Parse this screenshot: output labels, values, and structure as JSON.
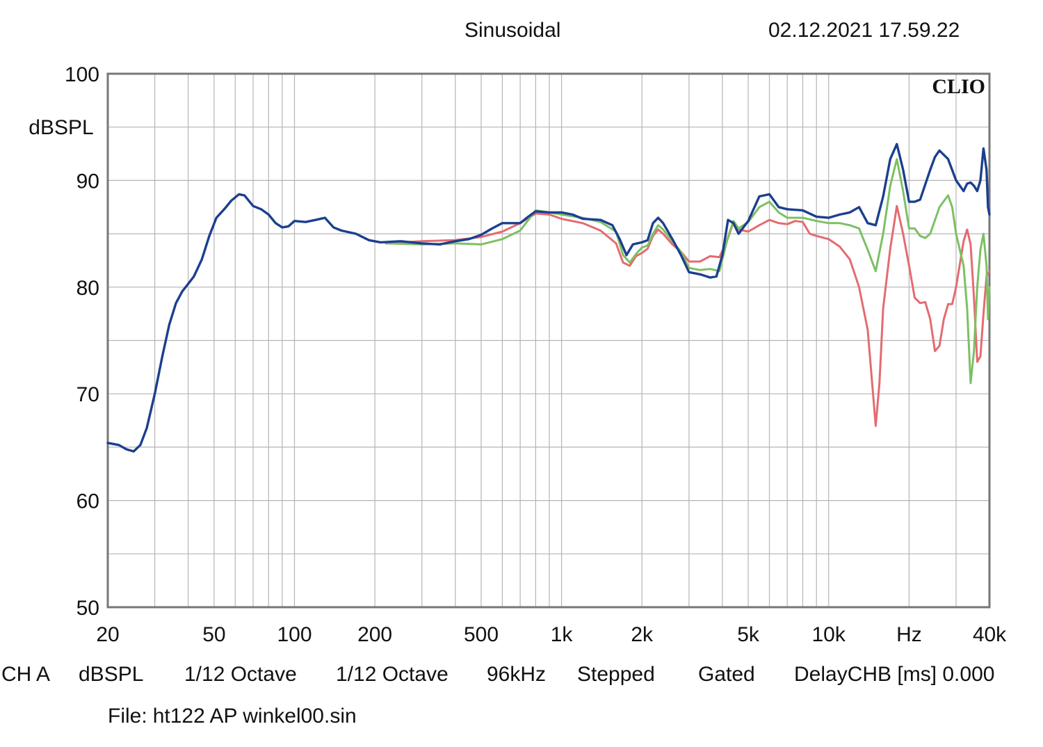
{
  "header": {
    "title": "Sinusoidal",
    "timestamp": "02.12.2021 17.59.22"
  },
  "footer": {
    "settings": [
      "CH A",
      "dBSPL",
      "1/12 Octave",
      "1/12 Octave",
      "96kHz",
      "Stepped",
      "Gated",
      "DelayCHB [ms] 0.000"
    ],
    "file_label": "File:",
    "file_name": "ht122 AP winkel00.sin"
  },
  "chart_data": {
    "type": "line",
    "logo": "CLIO",
    "ylabel": "dBSPL",
    "xscale": "log",
    "xlim": [
      20,
      40000
    ],
    "ylim": [
      50,
      100
    ],
    "y_ticks": [
      50,
      60,
      70,
      80,
      90,
      100
    ],
    "x_tick_labels": [
      {
        "value": 20,
        "label": "20"
      },
      {
        "value": 50,
        "label": "50"
      },
      {
        "value": 100,
        "label": "100"
      },
      {
        "value": 200,
        "label": "200"
      },
      {
        "value": 500,
        "label": "500"
      },
      {
        "value": 1000,
        "label": "1k"
      },
      {
        "value": 2000,
        "label": "2k"
      },
      {
        "value": 5000,
        "label": "5k"
      },
      {
        "value": 10000,
        "label": "10k"
      },
      {
        "value": 20000,
        "label": "Hz"
      },
      {
        "value": 40000,
        "label": "40k"
      }
    ],
    "grid": true,
    "colors": {
      "red": "#e46b70",
      "green": "#7cc062",
      "blue": "#1b3f8f"
    },
    "series": [
      {
        "color": "red",
        "points": [
          [
            220,
            84.1
          ],
          [
            300,
            84.3
          ],
          [
            400,
            84.4
          ],
          [
            500,
            84.7
          ],
          [
            600,
            85.2
          ],
          [
            700,
            86.0
          ],
          [
            800,
            86.9
          ],
          [
            900,
            86.8
          ],
          [
            1000,
            86.4
          ],
          [
            1200,
            86.0
          ],
          [
            1400,
            85.3
          ],
          [
            1600,
            84.1
          ],
          [
            1700,
            82.3
          ],
          [
            1800,
            82.0
          ],
          [
            1900,
            82.9
          ],
          [
            2000,
            83.2
          ],
          [
            2100,
            83.6
          ],
          [
            2200,
            84.8
          ],
          [
            2300,
            85.4
          ],
          [
            2400,
            85.0
          ],
          [
            2600,
            84.0
          ],
          [
            2800,
            83.3
          ],
          [
            3000,
            82.4
          ],
          [
            3300,
            82.4
          ],
          [
            3600,
            82.9
          ],
          [
            3900,
            82.8
          ],
          [
            4200,
            84.6
          ],
          [
            4400,
            86.1
          ],
          [
            4600,
            85.4
          ],
          [
            5000,
            85.2
          ],
          [
            5500,
            85.8
          ],
          [
            6000,
            86.3
          ],
          [
            6500,
            86.0
          ],
          [
            7000,
            85.9
          ],
          [
            7500,
            86.2
          ],
          [
            8000,
            86.1
          ],
          [
            8500,
            85.0
          ],
          [
            9000,
            84.8
          ],
          [
            10000,
            84.5
          ],
          [
            11000,
            83.8
          ],
          [
            12000,
            82.6
          ],
          [
            13000,
            80.0
          ],
          [
            14000,
            76.0
          ],
          [
            15000,
            67.0
          ],
          [
            15500,
            71.0
          ],
          [
            16000,
            78.0
          ],
          [
            17000,
            83.6
          ],
          [
            18000,
            87.6
          ],
          [
            19000,
            85.0
          ],
          [
            20000,
            82.0
          ],
          [
            21000,
            79.0
          ],
          [
            22000,
            78.5
          ],
          [
            23000,
            78.6
          ],
          [
            24000,
            77.0
          ],
          [
            25000,
            74.0
          ],
          [
            26000,
            74.5
          ],
          [
            27000,
            77.0
          ],
          [
            28000,
            78.4
          ],
          [
            29000,
            78.4
          ],
          [
            30000,
            80.0
          ],
          [
            32000,
            84.3
          ],
          [
            33000,
            85.4
          ],
          [
            34000,
            84.0
          ],
          [
            35000,
            79.0
          ],
          [
            36000,
            73.0
          ],
          [
            37000,
            73.5
          ],
          [
            38000,
            77.5
          ],
          [
            39000,
            81.0
          ],
          [
            40000,
            81.5
          ]
        ]
      },
      {
        "color": "green",
        "points": [
          [
            220,
            84.1
          ],
          [
            300,
            84.0
          ],
          [
            400,
            84.1
          ],
          [
            500,
            84.0
          ],
          [
            600,
            84.5
          ],
          [
            700,
            85.3
          ],
          [
            800,
            87.2
          ],
          [
            900,
            87.0
          ],
          [
            1000,
            86.8
          ],
          [
            1200,
            86.5
          ],
          [
            1400,
            86.1
          ],
          [
            1600,
            85.2
          ],
          [
            1700,
            83.0
          ],
          [
            1800,
            82.3
          ],
          [
            1900,
            83.1
          ],
          [
            2000,
            83.7
          ],
          [
            2100,
            83.9
          ],
          [
            2200,
            85.0
          ],
          [
            2300,
            85.8
          ],
          [
            2400,
            85.4
          ],
          [
            2600,
            84.3
          ],
          [
            2800,
            83.3
          ],
          [
            3000,
            81.8
          ],
          [
            3300,
            81.6
          ],
          [
            3600,
            81.7
          ],
          [
            3900,
            81.5
          ],
          [
            4200,
            84.7
          ],
          [
            4400,
            86.2
          ],
          [
            4600,
            85.5
          ],
          [
            5000,
            86.1
          ],
          [
            5500,
            87.5
          ],
          [
            6000,
            88.0
          ],
          [
            6500,
            87.0
          ],
          [
            7000,
            86.5
          ],
          [
            8000,
            86.5
          ],
          [
            9000,
            86.2
          ],
          [
            10000,
            86.0
          ],
          [
            11000,
            86.0
          ],
          [
            12000,
            85.8
          ],
          [
            13000,
            85.5
          ],
          [
            14000,
            83.5
          ],
          [
            15000,
            81.5
          ],
          [
            16000,
            85.0
          ],
          [
            17000,
            89.5
          ],
          [
            18000,
            92.0
          ],
          [
            19000,
            89.0
          ],
          [
            20000,
            85.5
          ],
          [
            21000,
            85.5
          ],
          [
            22000,
            84.8
          ],
          [
            23000,
            84.6
          ],
          [
            24000,
            85.0
          ],
          [
            26000,
            87.5
          ],
          [
            28000,
            88.6
          ],
          [
            29000,
            87.5
          ],
          [
            30000,
            85.0
          ],
          [
            32000,
            82.0
          ],
          [
            33000,
            78.0
          ],
          [
            34000,
            71.0
          ],
          [
            35000,
            74.0
          ],
          [
            36000,
            80.0
          ],
          [
            37000,
            83.5
          ],
          [
            38000,
            85.0
          ],
          [
            39000,
            82.0
          ],
          [
            39500,
            77.0
          ],
          [
            40000,
            80.0
          ]
        ]
      },
      {
        "color": "blue",
        "points": [
          [
            20,
            65.4
          ],
          [
            22,
            65.2
          ],
          [
            23.5,
            64.8
          ],
          [
            25,
            64.6
          ],
          [
            26.5,
            65.2
          ],
          [
            28,
            66.8
          ],
          [
            30,
            70.0
          ],
          [
            32,
            73.5
          ],
          [
            34,
            76.5
          ],
          [
            36,
            78.5
          ],
          [
            38,
            79.6
          ],
          [
            40,
            80.3
          ],
          [
            42,
            81.0
          ],
          [
            45,
            82.6
          ],
          [
            48,
            84.8
          ],
          [
            51,
            86.5
          ],
          [
            55,
            87.4
          ],
          [
            58,
            88.1
          ],
          [
            62,
            88.7
          ],
          [
            65,
            88.6
          ],
          [
            70,
            87.6
          ],
          [
            75,
            87.3
          ],
          [
            80,
            86.8
          ],
          [
            85,
            86.0
          ],
          [
            90,
            85.6
          ],
          [
            95,
            85.7
          ],
          [
            100,
            86.2
          ],
          [
            110,
            86.1
          ],
          [
            120,
            86.3
          ],
          [
            130,
            86.5
          ],
          [
            140,
            85.6
          ],
          [
            150,
            85.3
          ],
          [
            170,
            85.0
          ],
          [
            190,
            84.4
          ],
          [
            210,
            84.2
          ],
          [
            250,
            84.3
          ],
          [
            300,
            84.1
          ],
          [
            350,
            84.0
          ],
          [
            400,
            84.3
          ],
          [
            450,
            84.5
          ],
          [
            500,
            84.9
          ],
          [
            550,
            85.5
          ],
          [
            600,
            86.0
          ],
          [
            700,
            86.0
          ],
          [
            750,
            86.6
          ],
          [
            800,
            87.1
          ],
          [
            900,
            87.0
          ],
          [
            1000,
            87.0
          ],
          [
            1100,
            86.8
          ],
          [
            1200,
            86.4
          ],
          [
            1400,
            86.3
          ],
          [
            1550,
            85.8
          ],
          [
            1650,
            84.5
          ],
          [
            1750,
            83.0
          ],
          [
            1850,
            84.0
          ],
          [
            2000,
            84.2
          ],
          [
            2100,
            84.4
          ],
          [
            2200,
            86.0
          ],
          [
            2300,
            86.5
          ],
          [
            2400,
            86.0
          ],
          [
            2600,
            84.5
          ],
          [
            2800,
            83.0
          ],
          [
            3000,
            81.4
          ],
          [
            3300,
            81.2
          ],
          [
            3600,
            80.9
          ],
          [
            3800,
            81.0
          ],
          [
            4000,
            83.0
          ],
          [
            4200,
            86.3
          ],
          [
            4400,
            86.0
          ],
          [
            4600,
            85.0
          ],
          [
            5000,
            86.2
          ],
          [
            5500,
            88.5
          ],
          [
            6000,
            88.7
          ],
          [
            6500,
            87.5
          ],
          [
            7000,
            87.3
          ],
          [
            8000,
            87.2
          ],
          [
            9000,
            86.6
          ],
          [
            10000,
            86.5
          ],
          [
            11000,
            86.8
          ],
          [
            12000,
            87.0
          ],
          [
            13000,
            87.5
          ],
          [
            14000,
            86.0
          ],
          [
            15000,
            85.8
          ],
          [
            16000,
            88.5
          ],
          [
            17000,
            92.0
          ],
          [
            18000,
            93.4
          ],
          [
            19000,
            91.0
          ],
          [
            20000,
            88.0
          ],
          [
            21000,
            88.0
          ],
          [
            22000,
            88.2
          ],
          [
            24000,
            91.0
          ],
          [
            25000,
            92.2
          ],
          [
            26000,
            92.8
          ],
          [
            28000,
            92.0
          ],
          [
            30000,
            90.0
          ],
          [
            32000,
            89.0
          ],
          [
            33000,
            89.7
          ],
          [
            34000,
            89.8
          ],
          [
            35000,
            89.5
          ],
          [
            36000,
            89.0
          ],
          [
            37000,
            90.0
          ],
          [
            38000,
            93.0
          ],
          [
            39000,
            91.0
          ],
          [
            39500,
            87.5
          ],
          [
            40000,
            86.8
          ]
        ]
      }
    ]
  }
}
